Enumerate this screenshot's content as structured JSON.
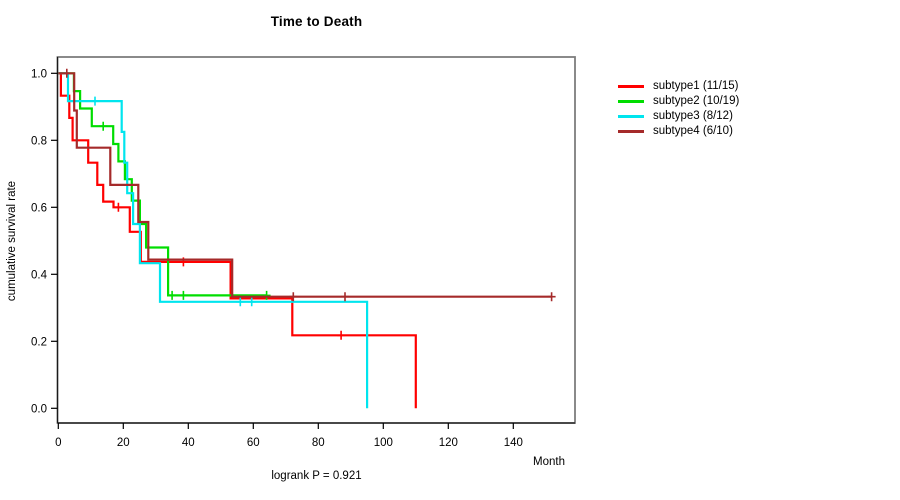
{
  "chart": {
    "title": "Time to Death",
    "ylabel": "cumulative survival rate",
    "xlabel": "Month",
    "annotation": "logrank P = 0.921"
  },
  "chart_data": {
    "type": "line",
    "variant": "kaplan-meier-step",
    "title": "Time to Death",
    "xlabel": "Month",
    "ylabel": "cumulative survival rate",
    "annotation": "logrank P = 0.921",
    "x_ticks": [
      0,
      20,
      40,
      60,
      80,
      100,
      120,
      140
    ],
    "y_ticks": [
      0.0,
      0.2,
      0.4,
      0.6,
      0.8,
      1.0
    ],
    "xlim": [
      0,
      159
    ],
    "ylim": [
      0.0,
      1.0
    ],
    "grid": false,
    "legend_position": "right-outside",
    "series": [
      {
        "label": "subtype1 (11/15)",
        "color": "#FF0000",
        "steps": [
          [
            0,
            1.0
          ],
          [
            0.8,
            0.933
          ],
          [
            3.4,
            0.867
          ],
          [
            4.4,
            0.8
          ],
          [
            9.2,
            0.733
          ],
          [
            12,
            0.667
          ],
          [
            13.8,
            0.617
          ],
          [
            17,
            0.6
          ],
          [
            22,
            0.527
          ],
          [
            25.4,
            0.437
          ],
          [
            53,
            0.328
          ],
          [
            72,
            0.218
          ],
          [
            110,
            0.0
          ]
        ],
        "censors": [
          [
            18.5,
            0.6
          ],
          [
            38.5,
            0.437
          ],
          [
            87,
            0.218
          ]
        ],
        "end_month": 110
      },
      {
        "label": "subtype2 (10/19)",
        "color": "#00DD00",
        "steps": [
          [
            0,
            1.0
          ],
          [
            4.8,
            0.947
          ],
          [
            6.7,
            0.895
          ],
          [
            10.3,
            0.842
          ],
          [
            16.9,
            0.789
          ],
          [
            18.5,
            0.737
          ],
          [
            20.5,
            0.684
          ],
          [
            22.6,
            0.62
          ],
          [
            25.1,
            0.55
          ],
          [
            27,
            0.48
          ],
          [
            33.8,
            0.337
          ]
        ],
        "censors": [
          [
            13.8,
            0.842
          ],
          [
            35,
            0.337
          ],
          [
            38.5,
            0.337
          ],
          [
            64.1,
            0.337
          ]
        ],
        "end_month": 64.1
      },
      {
        "label": "subtype3 (8/12)",
        "color": "#00E5EE",
        "steps": [
          [
            0,
            1.0
          ],
          [
            3,
            0.917
          ],
          [
            19.5,
            0.825
          ],
          [
            20.3,
            0.733
          ],
          [
            21.2,
            0.642
          ],
          [
            23,
            0.55
          ],
          [
            25.1,
            0.433
          ],
          [
            31.3,
            0.318
          ],
          [
            95,
            0.0
          ]
        ],
        "censors": [
          [
            11.3,
            0.917
          ],
          [
            56,
            0.318
          ],
          [
            59.5,
            0.318
          ]
        ],
        "end_month": 95
      },
      {
        "label": "subtype4 (6/10)",
        "color": "#A52A2A",
        "steps": [
          [
            0,
            1.0
          ],
          [
            4.9,
            0.889
          ],
          [
            5.7,
            0.778
          ],
          [
            16,
            0.667
          ],
          [
            24.6,
            0.556
          ],
          [
            27.7,
            0.444
          ],
          [
            53.5,
            0.333
          ]
        ],
        "censors": [
          [
            2.6,
            1.0
          ],
          [
            72.3,
            0.333
          ],
          [
            88.2,
            0.333
          ],
          [
            151.8,
            0.333
          ]
        ],
        "end_month": 152
      }
    ]
  }
}
